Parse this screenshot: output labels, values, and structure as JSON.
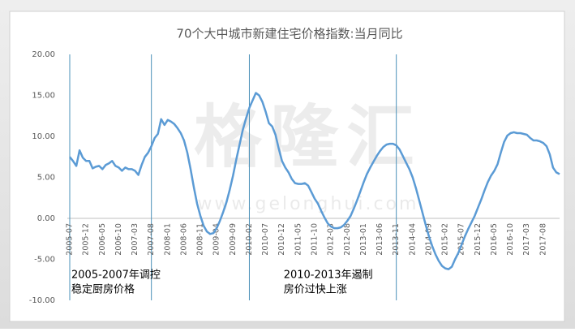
{
  "chart_data": {
    "type": "line",
    "title": "70个大中城市新建住宅价格指数:当月同比",
    "watermark": [
      "格隆汇",
      "www.gelonghui.com"
    ],
    "categories": [
      "2005-07",
      null,
      null,
      null,
      null,
      "2005-12",
      null,
      null,
      null,
      null,
      "2006-05",
      null,
      null,
      null,
      null,
      "2006-10",
      null,
      null,
      null,
      null,
      "2007-03",
      null,
      null,
      null,
      null,
      "2007-08",
      null,
      null,
      null,
      null,
      "2008-01",
      null,
      null,
      null,
      null,
      "2008-06",
      null,
      null,
      null,
      null,
      "2008-11",
      null,
      null,
      null,
      null,
      "2009-04",
      null,
      null,
      null,
      null,
      "2009-09",
      null,
      null,
      null,
      null,
      "2010-02",
      null,
      null,
      null,
      null,
      "2010-07",
      null,
      null,
      null,
      null,
      "2010-12",
      null,
      null,
      null,
      null,
      "2011-05",
      null,
      null,
      null,
      null,
      "2011-10",
      null,
      null,
      null,
      null,
      "2012-03",
      null,
      null,
      null,
      null,
      "2012-08",
      null,
      null,
      null,
      null,
      "2013-01",
      null,
      null,
      null,
      null,
      "2013-06",
      null,
      null,
      null,
      null,
      "2013-11",
      null,
      null,
      null,
      null,
      "2014-04",
      null,
      null,
      null,
      null,
      "2014-09",
      null,
      null,
      null,
      null,
      "2015-02",
      null,
      null,
      null,
      null,
      "2015-07",
      null,
      null,
      null,
      null,
      "2015-12",
      null,
      null,
      null,
      null,
      "2016-05",
      null,
      null,
      null,
      null,
      "2016-10",
      null,
      null,
      null,
      null,
      "2017-03",
      null,
      null,
      null,
      null,
      "2017-08",
      null,
      null,
      null,
      null,
      null
    ],
    "series": [
      {
        "name": "当月同比",
        "color": "#5b9bd5",
        "values": [
          7.5,
          7.0,
          6.4,
          8.3,
          7.4,
          7.0,
          7.0,
          6.1,
          6.3,
          6.4,
          6.0,
          6.5,
          6.7,
          7.0,
          6.4,
          6.2,
          5.8,
          6.2,
          6.0,
          6.0,
          5.8,
          5.3,
          6.5,
          7.5,
          8.0,
          8.8,
          9.8,
          10.3,
          12.1,
          11.4,
          12.0,
          11.8,
          11.5,
          11.0,
          10.4,
          9.5,
          8.0,
          6.0,
          3.8,
          1.8,
          0.3,
          -0.9,
          -1.6,
          -1.9,
          -1.8,
          -1.2,
          -0.3,
          0.8,
          2.0,
          3.5,
          5.2,
          7.2,
          9.0,
          10.8,
          12.2,
          13.5,
          14.4,
          15.3,
          15.0,
          14.2,
          13.0,
          11.6,
          11.2,
          10.2,
          8.5,
          7.0,
          6.2,
          5.6,
          4.8,
          4.3,
          4.2,
          4.2,
          4.3,
          4.0,
          3.2,
          2.4,
          1.8,
          0.9,
          0.1,
          -0.6,
          -1.0,
          -1.2,
          -1.2,
          -1.1,
          -0.8,
          -0.3,
          0.3,
          1.2,
          2.2,
          3.3,
          4.4,
          5.4,
          6.2,
          6.9,
          7.6,
          8.2,
          8.7,
          9.0,
          9.1,
          9.1,
          8.9,
          8.4,
          7.6,
          6.8,
          6.0,
          5.0,
          3.7,
          2.2,
          0.7,
          -0.8,
          -2.2,
          -3.4,
          -4.4,
          -5.2,
          -5.8,
          -6.1,
          -6.2,
          -5.9,
          -5.0,
          -4.2,
          -3.2,
          -2.2,
          -1.3,
          -0.5,
          0.3,
          1.3,
          2.3,
          3.4,
          4.4,
          5.2,
          5.8,
          6.6,
          8.0,
          9.3,
          10.1,
          10.4,
          10.5,
          10.4,
          10.4,
          10.3,
          10.2,
          9.8,
          9.5,
          9.5,
          9.4,
          9.2,
          8.8,
          7.8,
          6.2,
          5.6,
          5.4
        ]
      }
    ],
    "ylim": [
      -10,
      20
    ],
    "yticks": [
      {
        "value": -10,
        "label": "-10.00"
      },
      {
        "value": -5,
        "label": "-5.00"
      },
      {
        "value": 0,
        "label": "0.00"
      },
      {
        "value": 5,
        "label": "5.00"
      },
      {
        "value": 10,
        "label": "10.00"
      },
      {
        "value": 15,
        "label": "15.00"
      },
      {
        "value": 20,
        "label": "20.00"
      }
    ],
    "reference_lines": [
      0,
      25,
      55,
      100
    ],
    "annotations": [
      {
        "text": [
          "2005-2007年调控",
          "稳定厨房价格"
        ],
        "at": 0
      },
      {
        "text": [
          "2010-2013年遏制",
          "房价过快上涨"
        ],
        "at": 65
      }
    ]
  }
}
